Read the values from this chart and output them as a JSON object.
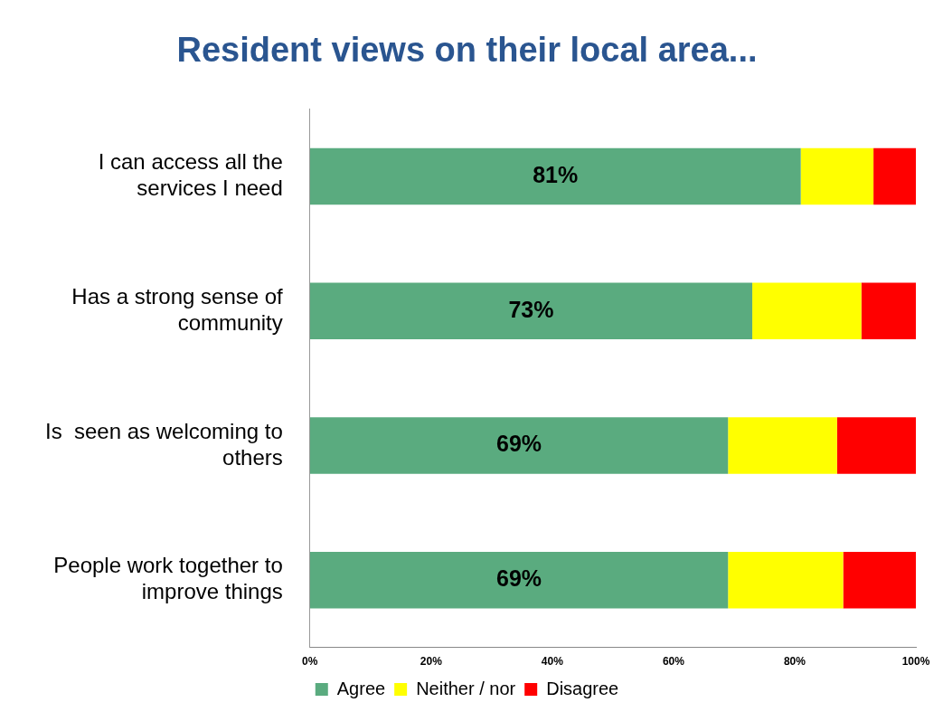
{
  "chart_data": {
    "type": "bar",
    "orientation": "horizontal",
    "stacked": true,
    "title": "Resident views on their local area...",
    "categories": [
      "I can access all the services I need",
      "Has a strong sense of community",
      "Is  seen as welcoming to others",
      "People work together to improve things"
    ],
    "series": [
      {
        "name": "Agree",
        "color": "#5aab7f",
        "values": [
          81,
          73,
          69,
          69
        ],
        "value_labels": [
          "81%",
          "73%",
          "69%",
          "69%"
        ]
      },
      {
        "name": "Neither / nor",
        "color": "#ffff00",
        "values": [
          12,
          18,
          18,
          19
        ]
      },
      {
        "name": "Disagree",
        "color": "#ff0000",
        "values": [
          7,
          9,
          13,
          12
        ]
      }
    ],
    "xlim": [
      0,
      100
    ],
    "xticks": [
      {
        "value": 0,
        "label": "0%"
      },
      {
        "value": 20,
        "label": "20%"
      },
      {
        "value": 40,
        "label": "40%"
      },
      {
        "value": 60,
        "label": "60%"
      },
      {
        "value": 80,
        "label": "80%"
      },
      {
        "value": 100,
        "label": "100%"
      }
    ],
    "grid": false,
    "legend": "bottom"
  }
}
